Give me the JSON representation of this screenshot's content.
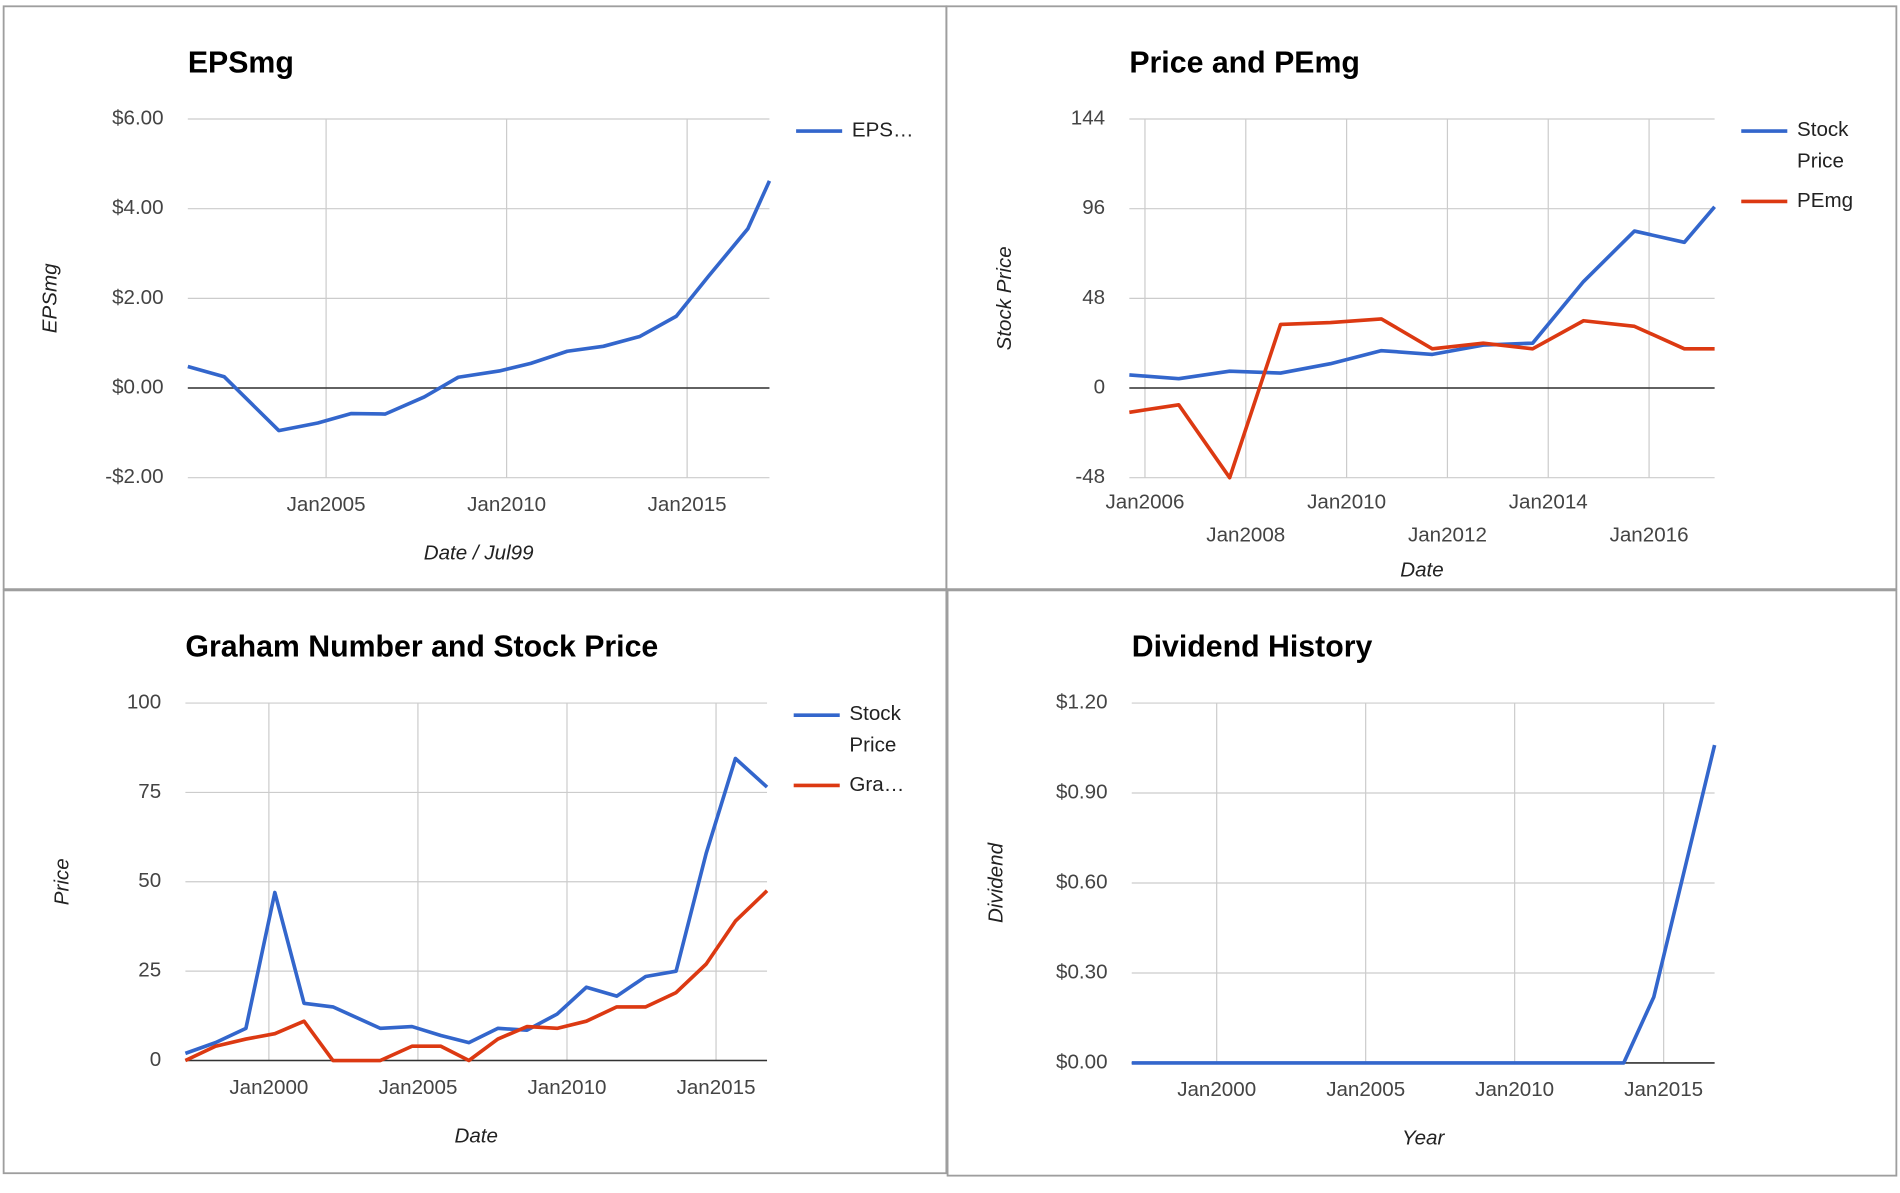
{
  "chart_data": [
    {
      "type": "line",
      "title": "EPSmg",
      "x_label": "Date / Jul99",
      "y_label": "EPSmg",
      "x": [
        2001.17,
        2002.18,
        2003.69,
        2004.77,
        2005.7,
        2006.64,
        2007.72,
        2008.66,
        2009.8,
        2010.67,
        2011.68,
        2012.68,
        2013.69,
        2014.7,
        2015.6,
        2016.68,
        2017.28
      ],
      "series": [
        {
          "name": "EPS…",
          "color": "#3366cc",
          "values": [
            0.48,
            0.25,
            -0.95,
            -0.78,
            -0.57,
            -0.58,
            -0.2,
            0.24,
            0.38,
            0.55,
            0.82,
            0.93,
            1.15,
            1.6,
            2.5,
            3.55,
            4.62
          ]
        }
      ],
      "xlim": [
        2001.17,
        2017.28
      ],
      "ylim": [
        -2,
        6
      ],
      "xticks": [
        {
          "value": 2005,
          "label": "Jan2005"
        },
        {
          "value": 2010,
          "label": "Jan2010"
        },
        {
          "value": 2015,
          "label": "Jan2015"
        }
      ],
      "yticks": [
        {
          "value": -2,
          "label": "-$2.00"
        },
        {
          "value": 0,
          "label": "$0.00"
        },
        {
          "value": 2,
          "label": "$2.00"
        },
        {
          "value": 4,
          "label": "$4.00"
        },
        {
          "value": 6,
          "label": "$6.00"
        }
      ],
      "grid": true,
      "legend": "right"
    },
    {
      "type": "line",
      "title": "Price and PEmg",
      "x_label": "Date",
      "y_label": "Stock Price",
      "x": [
        2005.69,
        2006.67,
        2007.68,
        2008.69,
        2009.68,
        2010.69,
        2011.7,
        2012.71,
        2013.69,
        2014.7,
        2015.71,
        2016.7,
        2017.3
      ],
      "series": [
        {
          "name": "Stock Price",
          "color": "#3366cc",
          "values": [
            7,
            5,
            9,
            8,
            13,
            20,
            18,
            23,
            24,
            57,
            84,
            78,
            97
          ]
        },
        {
          "name": "PEmg",
          "color": "#dc3912",
          "values": [
            -13,
            -9,
            -48,
            34,
            35,
            37,
            21,
            24,
            21,
            36,
            33,
            21,
            21
          ]
        }
      ],
      "xlim": [
        2005.69,
        2017.3
      ],
      "ylim": [
        -48,
        144
      ],
      "xticks": [
        {
          "value": 2006,
          "label": "Jan2006"
        },
        {
          "value": 2008,
          "label": "Jan2008"
        },
        {
          "value": 2010,
          "label": "Jan2010"
        },
        {
          "value": 2012,
          "label": "Jan2012"
        },
        {
          "value": 2014,
          "label": "Jan2014"
        },
        {
          "value": 2016,
          "label": "Jan2016"
        }
      ],
      "yticks": [
        -48,
        0,
        48,
        96,
        144
      ],
      "grid": true,
      "legend": "right"
    },
    {
      "type": "line",
      "title": "Graham Number and Stock Price",
      "x_label": "Date",
      "y_label": "Price",
      "x": [
        1997.2,
        1998.21,
        1999.23,
        2000.2,
        2001.18,
        2002.15,
        2003.74,
        2004.8,
        2005.77,
        2006.71,
        2007.68,
        2008.66,
        2009.67,
        2010.65,
        2011.67,
        2012.64,
        2013.66,
        2014.67,
        2015.65,
        2016.71
      ],
      "series": [
        {
          "name": "Stock Price",
          "color": "#3366cc",
          "values": [
            2,
            5,
            9,
            47,
            16,
            15,
            9,
            9.5,
            7,
            5,
            9,
            8.5,
            13,
            20.5,
            18,
            23.5,
            25,
            58,
            84.5,
            76.5
          ]
        },
        {
          "name": "Gra…",
          "color": "#dc3912",
          "values": [
            0,
            4,
            6,
            7.5,
            11,
            0,
            0,
            4,
            4,
            0,
            6,
            9.5,
            9,
            11,
            15,
            15,
            19,
            27,
            39,
            47.5
          ]
        }
      ],
      "xlim": [
        1997.2,
        2016.71
      ],
      "ylim": [
        0,
        100
      ],
      "xticks": [
        {
          "value": 2000,
          "label": "Jan2000"
        },
        {
          "value": 2005,
          "label": "Jan2005"
        },
        {
          "value": 2010,
          "label": "Jan2010"
        },
        {
          "value": 2015,
          "label": "Jan2015"
        }
      ],
      "yticks": [
        0,
        25,
        50,
        75,
        100
      ],
      "grid": true,
      "legend": "right"
    },
    {
      "type": "line",
      "title": "Dividend History",
      "x_label": "Year",
      "y_label": "Dividend",
      "x": [
        1997.15,
        1998.21,
        1999.23,
        2000.2,
        2001.18,
        2002.15,
        2003.74,
        2004.8,
        2005.77,
        2006.71,
        2007.68,
        2008.66,
        2009.67,
        2010.65,
        2011.67,
        2012.64,
        2013.66,
        2014.67,
        2015.69,
        2016.71
      ],
      "series": [
        {
          "name": "Dividend",
          "color": "#3366cc",
          "values": [
            0,
            0,
            0,
            0,
            0,
            0,
            0,
            0,
            0,
            0,
            0,
            0,
            0,
            0,
            0,
            0,
            0,
            0.22,
            0.64,
            1.06
          ]
        }
      ],
      "xlim": [
        1997.15,
        2016.71
      ],
      "ylim": [
        0,
        1.2
      ],
      "xticks": [
        {
          "value": 2000,
          "label": "Jan2000"
        },
        {
          "value": 2005,
          "label": "Jan2005"
        },
        {
          "value": 2010,
          "label": "Jan2010"
        },
        {
          "value": 2015,
          "label": "Jan2015"
        }
      ],
      "yticks": [
        {
          "value": 0,
          "label": "$0.00"
        },
        {
          "value": 0.3,
          "label": "$0.30"
        },
        {
          "value": 0.6,
          "label": "$0.60"
        },
        {
          "value": 0.9,
          "label": "$0.90"
        },
        {
          "value": 1.2,
          "label": "$1.20"
        }
      ],
      "grid": true
    }
  ]
}
